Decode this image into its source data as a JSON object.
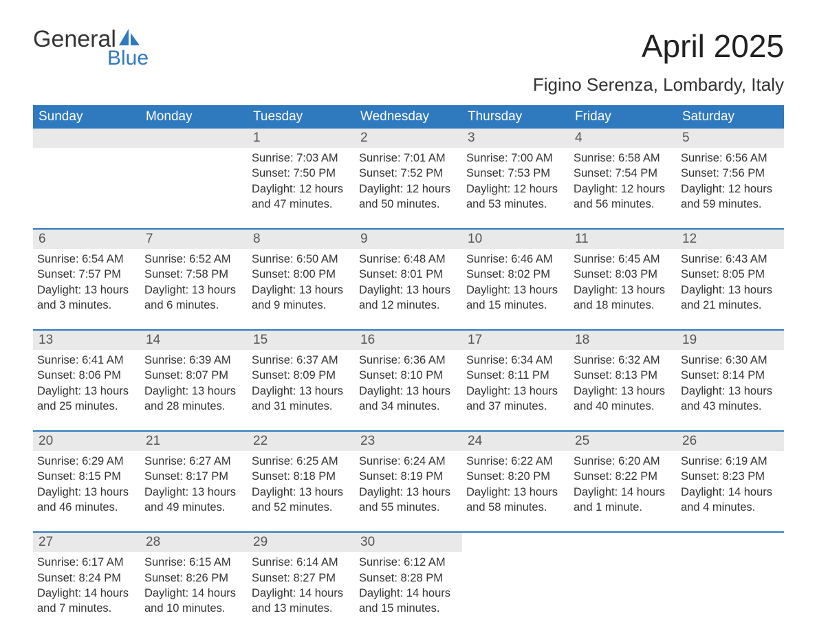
{
  "logo": {
    "line1": "General",
    "line2": "Blue"
  },
  "title": "April 2025",
  "subtitle": "Figino Serenza, Lombardy, Italy",
  "colors": {
    "header_bg": "#2f79bf",
    "header_text": "#ffffff",
    "daynum_bg": "#e9e9e9",
    "rule": "#2f79bf",
    "body_text": "#333333",
    "logo_blue": "#2f79bf"
  },
  "typography": {
    "title_fontsize": 46,
    "subtitle_fontsize": 26,
    "header_fontsize": 19,
    "daynum_fontsize": 19,
    "body_fontsize": 16.5
  },
  "layout": {
    "columns": 7,
    "rows": 5
  },
  "weekdays": [
    "Sunday",
    "Monday",
    "Tuesday",
    "Wednesday",
    "Thursday",
    "Friday",
    "Saturday"
  ],
  "weeks": [
    [
      {
        "empty": true
      },
      {
        "empty": true
      },
      {
        "day": "1",
        "sunrise": "Sunrise: 7:03 AM",
        "sunset": "Sunset: 7:50 PM",
        "daylight1": "Daylight: 12 hours",
        "daylight2": "and 47 minutes."
      },
      {
        "day": "2",
        "sunrise": "Sunrise: 7:01 AM",
        "sunset": "Sunset: 7:52 PM",
        "daylight1": "Daylight: 12 hours",
        "daylight2": "and 50 minutes."
      },
      {
        "day": "3",
        "sunrise": "Sunrise: 7:00 AM",
        "sunset": "Sunset: 7:53 PM",
        "daylight1": "Daylight: 12 hours",
        "daylight2": "and 53 minutes."
      },
      {
        "day": "4",
        "sunrise": "Sunrise: 6:58 AM",
        "sunset": "Sunset: 7:54 PM",
        "daylight1": "Daylight: 12 hours",
        "daylight2": "and 56 minutes."
      },
      {
        "day": "5",
        "sunrise": "Sunrise: 6:56 AM",
        "sunset": "Sunset: 7:56 PM",
        "daylight1": "Daylight: 12 hours",
        "daylight2": "and 59 minutes."
      }
    ],
    [
      {
        "day": "6",
        "sunrise": "Sunrise: 6:54 AM",
        "sunset": "Sunset: 7:57 PM",
        "daylight1": "Daylight: 13 hours",
        "daylight2": "and 3 minutes."
      },
      {
        "day": "7",
        "sunrise": "Sunrise: 6:52 AM",
        "sunset": "Sunset: 7:58 PM",
        "daylight1": "Daylight: 13 hours",
        "daylight2": "and 6 minutes."
      },
      {
        "day": "8",
        "sunrise": "Sunrise: 6:50 AM",
        "sunset": "Sunset: 8:00 PM",
        "daylight1": "Daylight: 13 hours",
        "daylight2": "and 9 minutes."
      },
      {
        "day": "9",
        "sunrise": "Sunrise: 6:48 AM",
        "sunset": "Sunset: 8:01 PM",
        "daylight1": "Daylight: 13 hours",
        "daylight2": "and 12 minutes."
      },
      {
        "day": "10",
        "sunrise": "Sunrise: 6:46 AM",
        "sunset": "Sunset: 8:02 PM",
        "daylight1": "Daylight: 13 hours",
        "daylight2": "and 15 minutes."
      },
      {
        "day": "11",
        "sunrise": "Sunrise: 6:45 AM",
        "sunset": "Sunset: 8:03 PM",
        "daylight1": "Daylight: 13 hours",
        "daylight2": "and 18 minutes."
      },
      {
        "day": "12",
        "sunrise": "Sunrise: 6:43 AM",
        "sunset": "Sunset: 8:05 PM",
        "daylight1": "Daylight: 13 hours",
        "daylight2": "and 21 minutes."
      }
    ],
    [
      {
        "day": "13",
        "sunrise": "Sunrise: 6:41 AM",
        "sunset": "Sunset: 8:06 PM",
        "daylight1": "Daylight: 13 hours",
        "daylight2": "and 25 minutes."
      },
      {
        "day": "14",
        "sunrise": "Sunrise: 6:39 AM",
        "sunset": "Sunset: 8:07 PM",
        "daylight1": "Daylight: 13 hours",
        "daylight2": "and 28 minutes."
      },
      {
        "day": "15",
        "sunrise": "Sunrise: 6:37 AM",
        "sunset": "Sunset: 8:09 PM",
        "daylight1": "Daylight: 13 hours",
        "daylight2": "and 31 minutes."
      },
      {
        "day": "16",
        "sunrise": "Sunrise: 6:36 AM",
        "sunset": "Sunset: 8:10 PM",
        "daylight1": "Daylight: 13 hours",
        "daylight2": "and 34 minutes."
      },
      {
        "day": "17",
        "sunrise": "Sunrise: 6:34 AM",
        "sunset": "Sunset: 8:11 PM",
        "daylight1": "Daylight: 13 hours",
        "daylight2": "and 37 minutes."
      },
      {
        "day": "18",
        "sunrise": "Sunrise: 6:32 AM",
        "sunset": "Sunset: 8:13 PM",
        "daylight1": "Daylight: 13 hours",
        "daylight2": "and 40 minutes."
      },
      {
        "day": "19",
        "sunrise": "Sunrise: 6:30 AM",
        "sunset": "Sunset: 8:14 PM",
        "daylight1": "Daylight: 13 hours",
        "daylight2": "and 43 minutes."
      }
    ],
    [
      {
        "day": "20",
        "sunrise": "Sunrise: 6:29 AM",
        "sunset": "Sunset: 8:15 PM",
        "daylight1": "Daylight: 13 hours",
        "daylight2": "and 46 minutes."
      },
      {
        "day": "21",
        "sunrise": "Sunrise: 6:27 AM",
        "sunset": "Sunset: 8:17 PM",
        "daylight1": "Daylight: 13 hours",
        "daylight2": "and 49 minutes."
      },
      {
        "day": "22",
        "sunrise": "Sunrise: 6:25 AM",
        "sunset": "Sunset: 8:18 PM",
        "daylight1": "Daylight: 13 hours",
        "daylight2": "and 52 minutes."
      },
      {
        "day": "23",
        "sunrise": "Sunrise: 6:24 AM",
        "sunset": "Sunset: 8:19 PM",
        "daylight1": "Daylight: 13 hours",
        "daylight2": "and 55 minutes."
      },
      {
        "day": "24",
        "sunrise": "Sunrise: 6:22 AM",
        "sunset": "Sunset: 8:20 PM",
        "daylight1": "Daylight: 13 hours",
        "daylight2": "and 58 minutes."
      },
      {
        "day": "25",
        "sunrise": "Sunrise: 6:20 AM",
        "sunset": "Sunset: 8:22 PM",
        "daylight1": "Daylight: 14 hours",
        "daylight2": "and 1 minute."
      },
      {
        "day": "26",
        "sunrise": "Sunrise: 6:19 AM",
        "sunset": "Sunset: 8:23 PM",
        "daylight1": "Daylight: 14 hours",
        "daylight2": "and 4 minutes."
      }
    ],
    [
      {
        "day": "27",
        "sunrise": "Sunrise: 6:17 AM",
        "sunset": "Sunset: 8:24 PM",
        "daylight1": "Daylight: 14 hours",
        "daylight2": "and 7 minutes."
      },
      {
        "day": "28",
        "sunrise": "Sunrise: 6:15 AM",
        "sunset": "Sunset: 8:26 PM",
        "daylight1": "Daylight: 14 hours",
        "daylight2": "and 10 minutes."
      },
      {
        "day": "29",
        "sunrise": "Sunrise: 6:14 AM",
        "sunset": "Sunset: 8:27 PM",
        "daylight1": "Daylight: 14 hours",
        "daylight2": "and 13 minutes."
      },
      {
        "day": "30",
        "sunrise": "Sunrise: 6:12 AM",
        "sunset": "Sunset: 8:28 PM",
        "daylight1": "Daylight: 14 hours",
        "daylight2": "and 15 minutes."
      },
      {
        "empty": true,
        "nobar": true
      },
      {
        "empty": true,
        "nobar": true
      },
      {
        "empty": true,
        "nobar": true
      }
    ]
  ]
}
